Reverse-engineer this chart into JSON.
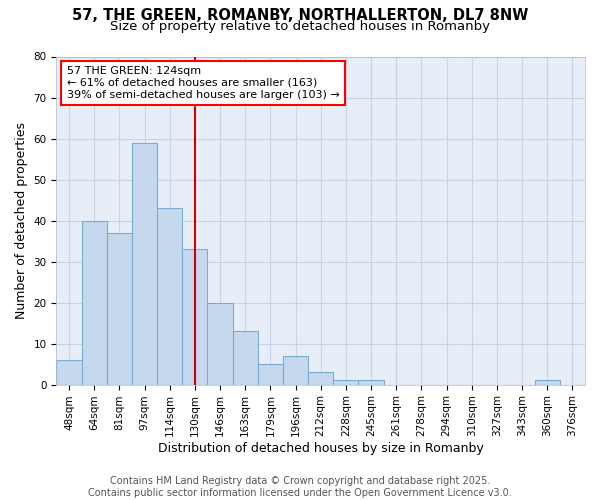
{
  "title": "57, THE GREEN, ROMANBY, NORTHALLERTON, DL7 8NW",
  "subtitle": "Size of property relative to detached houses in Romanby",
  "xlabel": "Distribution of detached houses by size in Romanby",
  "ylabel": "Number of detached properties",
  "bin_labels": [
    "48sqm",
    "64sqm",
    "81sqm",
    "97sqm",
    "114sqm",
    "130sqm",
    "146sqm",
    "163sqm",
    "179sqm",
    "196sqm",
    "212sqm",
    "228sqm",
    "245sqm",
    "261sqm",
    "278sqm",
    "294sqm",
    "310sqm",
    "327sqm",
    "343sqm",
    "360sqm",
    "376sqm"
  ],
  "bin_values": [
    6,
    40,
    37,
    59,
    43,
    33,
    20,
    13,
    5,
    7,
    3,
    1,
    1,
    0,
    0,
    0,
    0,
    0,
    0,
    1,
    0
  ],
  "bar_color": "#c5d8ed",
  "bar_edge_color": "#7aaed0",
  "property_line_x": 5.0,
  "annotation_line1": "57 THE GREEN: 124sqm",
  "annotation_line2": "← 61% of detached houses are smaller (163)",
  "annotation_line3": "39% of semi-detached houses are larger (103) →",
  "vline_color": "#cc0000",
  "ylim": [
    0,
    80
  ],
  "yticks": [
    0,
    10,
    20,
    30,
    40,
    50,
    60,
    70,
    80
  ],
  "grid_color": "#c8d4e4",
  "background_color": "#e8eef8",
  "plot_bg_color": "#eef2fa",
  "footer_text": "Contains HM Land Registry data © Crown copyright and database right 2025.\nContains public sector information licensed under the Open Government Licence v3.0.",
  "title_fontsize": 10.5,
  "subtitle_fontsize": 9.5,
  "axis_label_fontsize": 9,
  "tick_fontsize": 7.5,
  "annotation_fontsize": 8,
  "footer_fontsize": 7
}
